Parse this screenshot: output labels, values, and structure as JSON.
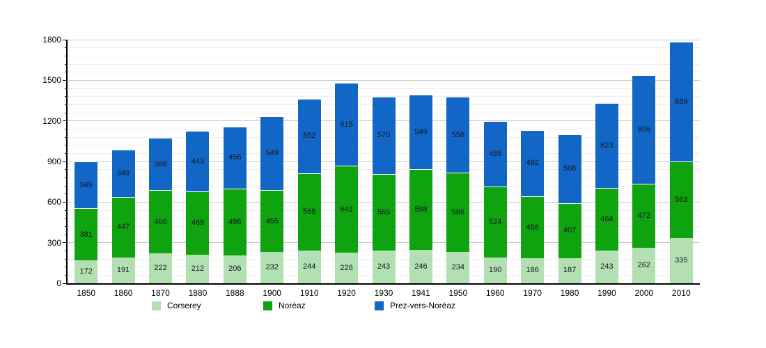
{
  "chart_data": {
    "type": "bar",
    "stacked": true,
    "title": "",
    "xlabel": "",
    "ylabel": "",
    "categories": [
      "1850",
      "1860",
      "1870",
      "1880",
      "1888",
      "1900",
      "1910",
      "1920",
      "1930",
      "1941",
      "1950",
      "1960",
      "1970",
      "1980",
      "1990",
      "2000",
      "2010"
    ],
    "series": [
      {
        "name": "Corserey",
        "color": "#b3e0b3",
        "values": [
          172,
          191,
          222,
          212,
          206,
          232,
          244,
          226,
          243,
          246,
          234,
          190,
          186,
          187,
          243,
          262,
          335
        ]
      },
      {
        "name": "Noréaz",
        "color": "#10a310",
        "values": [
          381,
          447,
          466,
          469,
          496,
          455,
          568,
          641,
          565,
          598,
          586,
          524,
          456,
          407,
          464,
          472,
          563
        ]
      },
      {
        "name": "Prez-vers-Noréaz",
        "color": "#1267c6",
        "values": [
          345,
          349,
          386,
          443,
          456,
          549,
          552,
          615,
          570,
          549,
          556,
          485,
          492,
          508,
          623,
          806,
          889
        ]
      }
    ],
    "ylim": [
      0,
      1800
    ],
    "yticks": [
      0,
      300,
      600,
      900,
      1200,
      1500,
      1800
    ],
    "minor_gridline_step": 60,
    "grid": true,
    "bar_value_labels": true,
    "legend_position": "bottom"
  }
}
